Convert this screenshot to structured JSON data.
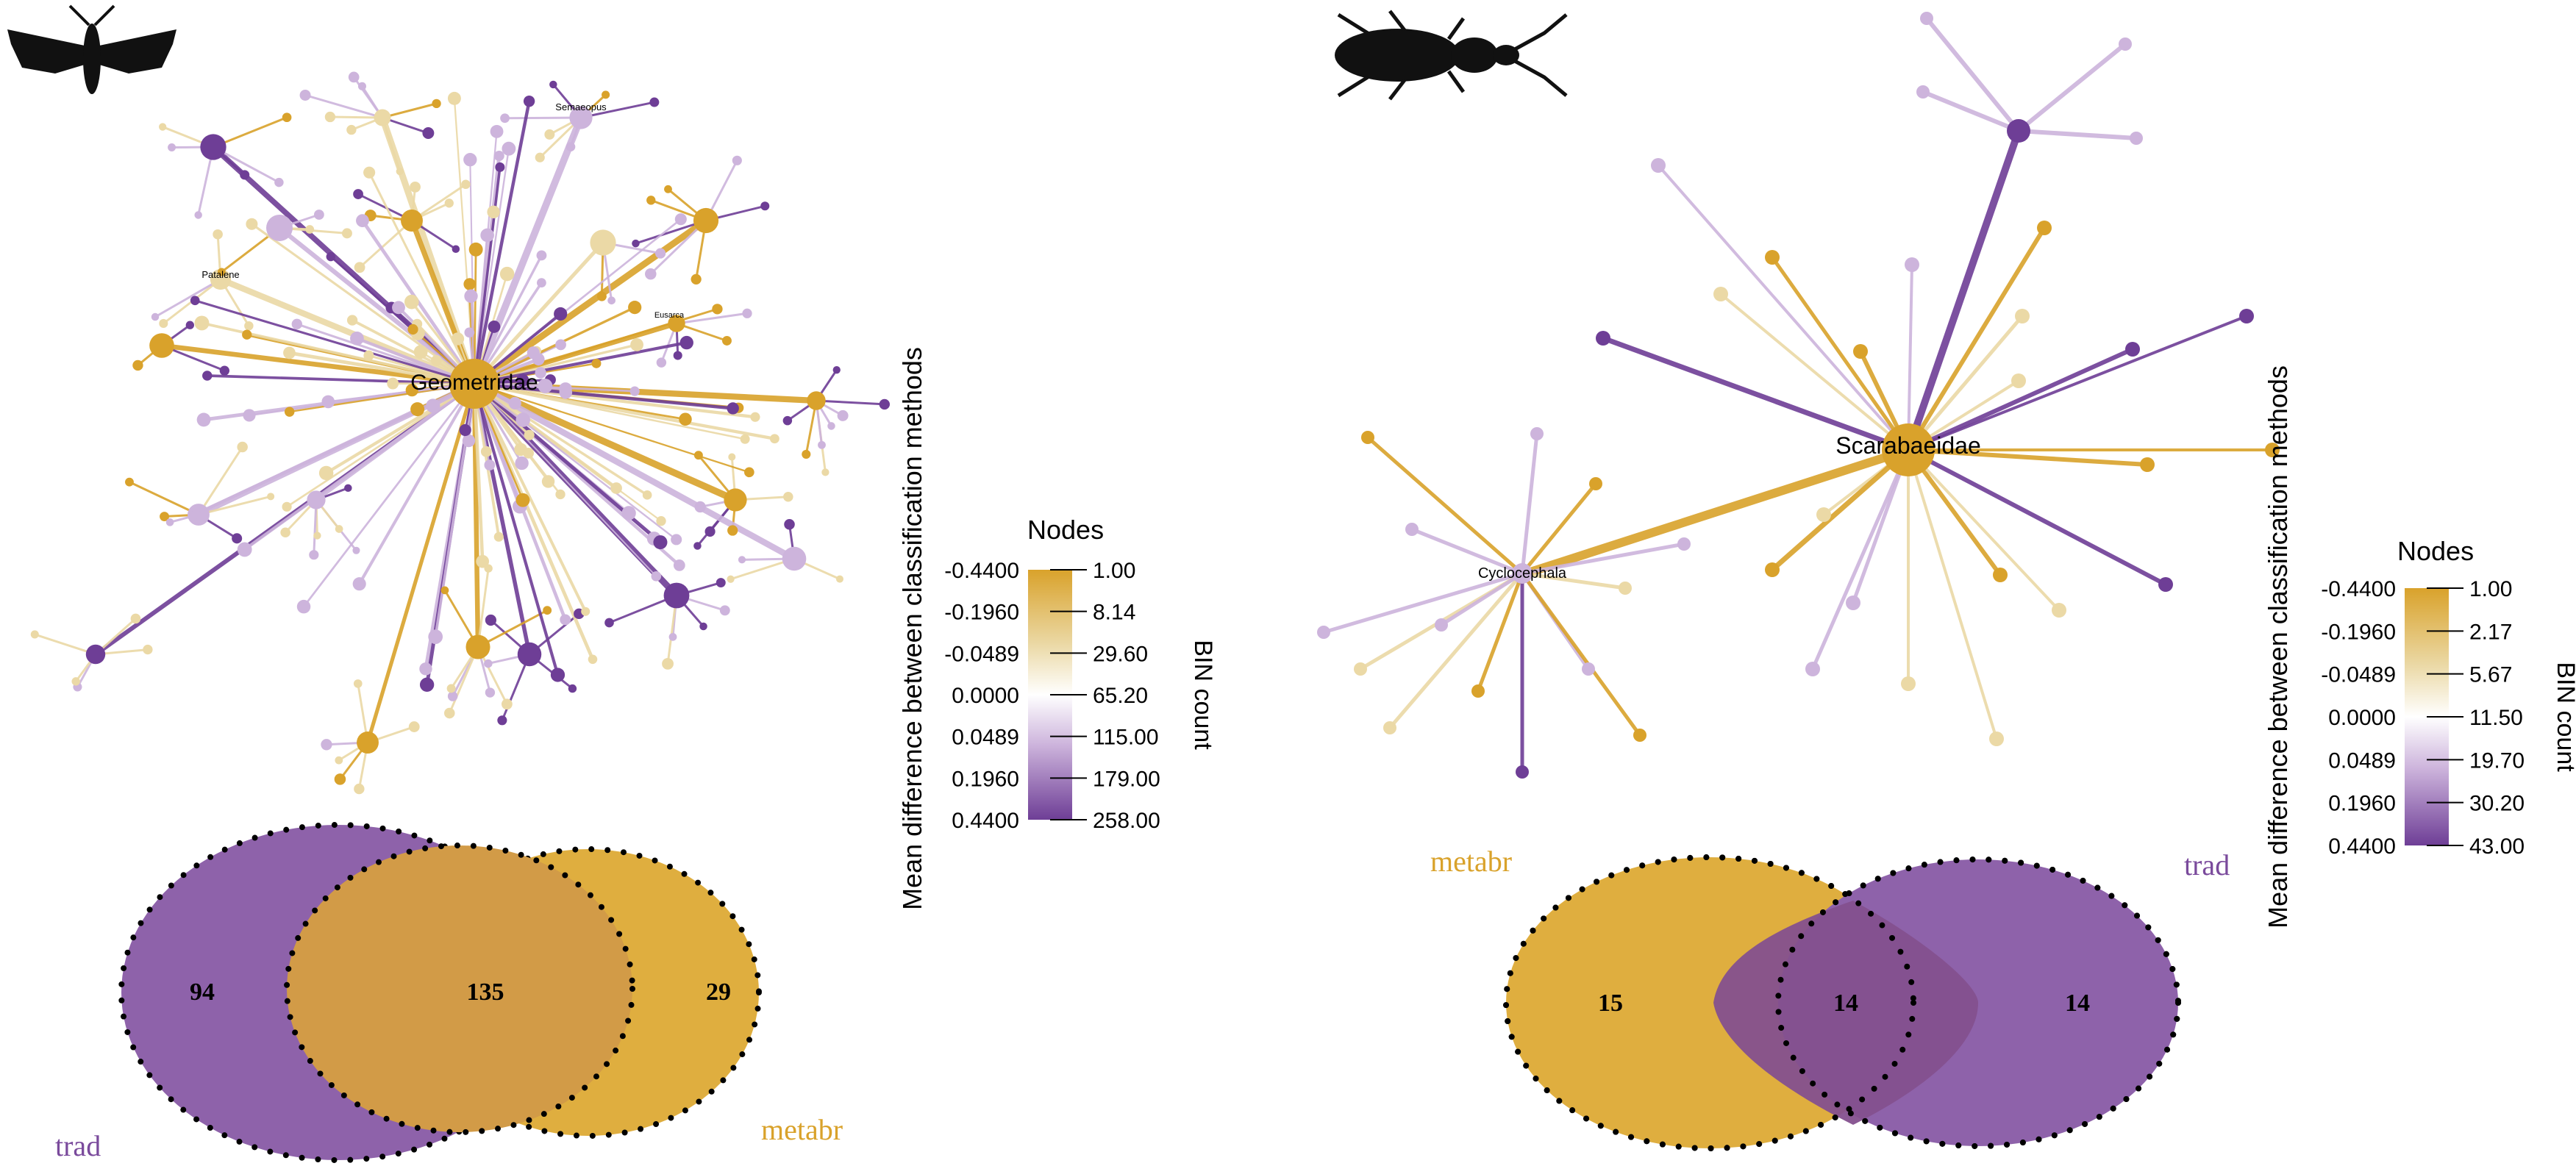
{
  "panels": [
    {
      "id": "moth",
      "silhouette": "moth-icon",
      "network": {
        "root_label": "Geometridae",
        "labeled_subroots": [
          "Semaeopus",
          "Patalene",
          "Eusarca"
        ]
      },
      "legend": {
        "axis_title": "Mean difference between classification methods",
        "nodes_title": "Nodes",
        "bin_title": "BIN count",
        "diff_ticks": [
          "-0.4400",
          "-0.1960",
          "-0.0489",
          "0.0000",
          "0.0489",
          "0.1960",
          "0.4400"
        ],
        "bin_ticks": [
          "1.00",
          "8.14",
          "29.60",
          "65.20",
          "115.00",
          "179.00",
          "258.00"
        ]
      },
      "venn": {
        "left_value": "94",
        "overlap_value": "135",
        "right_value": "29",
        "label_trad": "trad",
        "label_metabr": "metabr"
      }
    },
    {
      "id": "beetle",
      "silhouette": "beetle-icon",
      "network": {
        "root_label": "Scarabaeidae",
        "labeled_subroots": [
          "Cyclocephala"
        ]
      },
      "legend": {
        "axis_title": "Mean difference between classification methods",
        "nodes_title": "Nodes",
        "bin_title": "BIN count",
        "diff_ticks": [
          "-0.4400",
          "-0.1960",
          "-0.0489",
          "0.0000",
          "0.0489",
          "0.1960",
          "0.4400"
        ],
        "bin_ticks": [
          "1.00",
          "2.17",
          "5.67",
          "11.50",
          "19.70",
          "30.20",
          "43.00"
        ]
      },
      "venn": {
        "left_value": "15",
        "overlap_value": "14",
        "right_value": "14",
        "label_trad": "trad",
        "label_metabr": "metabr"
      }
    }
  ],
  "colors": {
    "gold": "#D9A22B",
    "gold_light": "#EBD9A6",
    "purple": "#6E3E96",
    "purple_light": "#CDB4DC",
    "venn_purple": "#8E62AA",
    "venn_gold": "#DFAE3F",
    "venn_overlap_left": "#D29B47",
    "venn_overlap_right": "#84508E"
  }
}
